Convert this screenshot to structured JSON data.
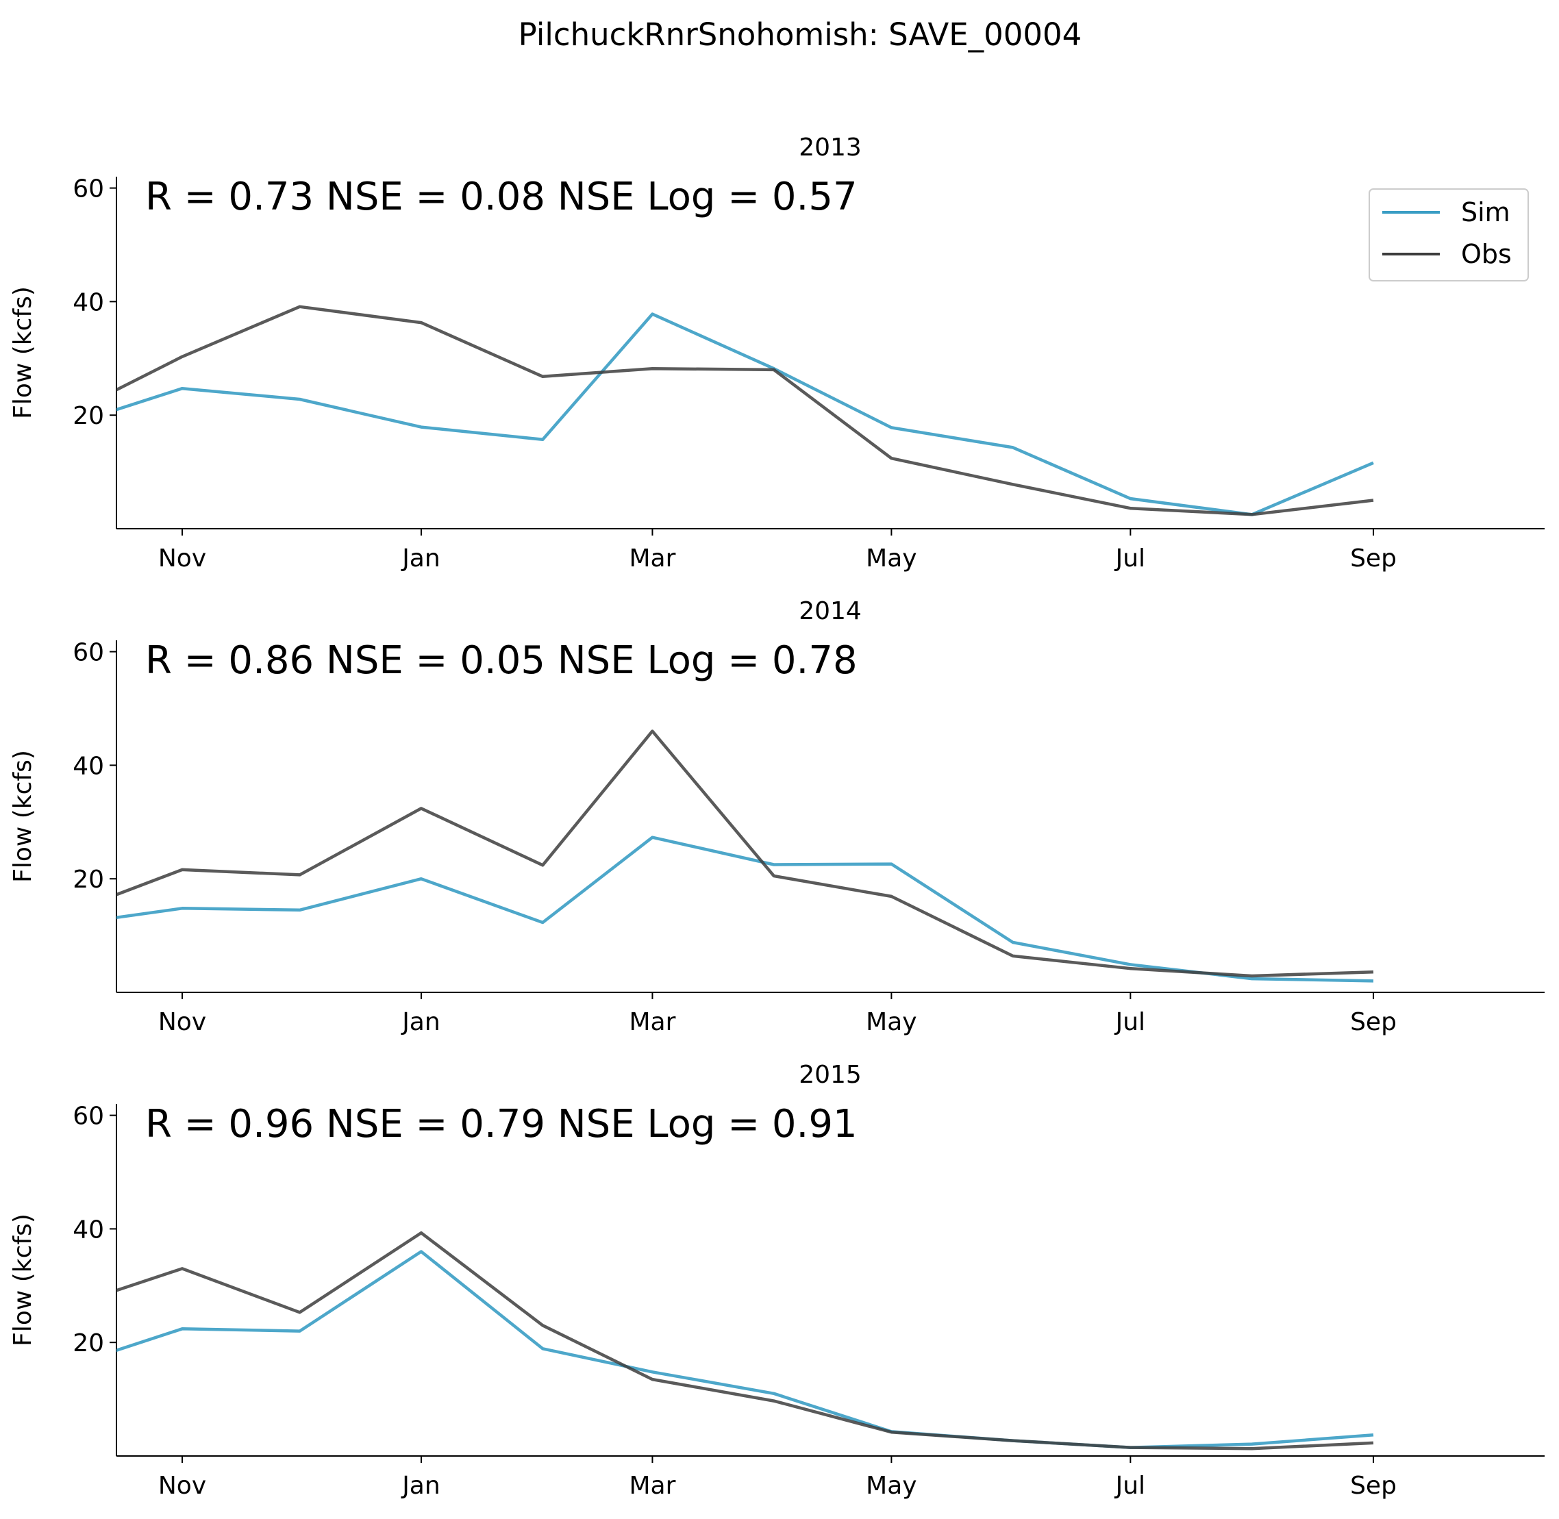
{
  "title": "PilchuckRnrSnohomish: SAVE_00004",
  "colors": {
    "sim": "#3a9dc4",
    "obs": "#3d3d3d"
  },
  "legend": {
    "position": "top-right",
    "sim_label": "Sim",
    "obs_label": "Obs"
  },
  "chart_data": [
    {
      "type": "line",
      "title": "2013",
      "stats": "R = 0.73  NSE = 0.08  NSE Log = 0.57",
      "ylabel": "Flow (kcfs)",
      "ylim": [
        0,
        62
      ],
      "yticks": [
        "20",
        "40",
        "60"
      ],
      "xticks": [
        "Nov",
        "Jan",
        "Mar",
        "May",
        "Jul",
        "Sep"
      ],
      "x": [
        "2012-10-01",
        "2012-11-01",
        "2012-12-01",
        "2013-01-01",
        "2013-02-01",
        "2013-03-01",
        "2013-04-01",
        "2013-05-01",
        "2013-06-01",
        "2013-07-01",
        "2013-08-01",
        "2013-09-01"
      ],
      "series": [
        {
          "name": "Sim",
          "values": [
            17.8,
            24.7,
            22.8,
            17.9,
            15.7,
            37.8,
            28.2,
            17.8,
            14.3,
            5.3,
            2.5,
            11.6
          ]
        },
        {
          "name": "Obs",
          "values": [
            19.5,
            30.3,
            39.1,
            36.3,
            26.8,
            28.2,
            28.0,
            12.4,
            7.8,
            3.6,
            2.5,
            5.0
          ]
        }
      ]
    },
    {
      "type": "line",
      "title": "2014",
      "stats": "R = 0.86  NSE = 0.05  NSE Log = 0.78",
      "ylabel": "Flow (kcfs)",
      "ylim": [
        0,
        62
      ],
      "yticks": [
        "20",
        "40",
        "60"
      ],
      "xticks": [
        "Nov",
        "Jan",
        "Mar",
        "May",
        "Jul",
        "Sep"
      ],
      "x": [
        "2013-10-01",
        "2013-11-01",
        "2013-12-01",
        "2014-01-01",
        "2014-02-01",
        "2014-03-01",
        "2014-04-01",
        "2014-05-01",
        "2014-06-01",
        "2014-07-01",
        "2014-08-01",
        "2014-09-01"
      ],
      "series": [
        {
          "name": "Sim",
          "values": [
            11.8,
            14.8,
            14.5,
            20.0,
            12.3,
            27.3,
            22.5,
            22.6,
            8.8,
            4.9,
            2.4,
            2.0
          ]
        },
        {
          "name": "Obs",
          "values": [
            13.5,
            21.6,
            20.7,
            32.4,
            22.4,
            46.0,
            20.5,
            16.9,
            6.4,
            4.2,
            2.9,
            3.6
          ]
        }
      ]
    },
    {
      "type": "line",
      "title": "2015",
      "stats": "R = 0.96  NSE = 0.79  NSE Log = 0.91",
      "ylabel": "Flow (kcfs)",
      "ylim": [
        0,
        62
      ],
      "yticks": [
        "20",
        "40",
        "60"
      ],
      "xticks": [
        "Nov",
        "Jan",
        "Mar",
        "May",
        "Jul",
        "Sep"
      ],
      "x": [
        "2014-10-01",
        "2014-11-01",
        "2014-12-01",
        "2015-01-01",
        "2015-02-01",
        "2015-03-01",
        "2015-04-01",
        "2015-05-01",
        "2015-06-01",
        "2015-07-01",
        "2015-08-01",
        "2015-09-01"
      ],
      "series": [
        {
          "name": "Sim",
          "values": [
            15.4,
            22.4,
            22.0,
            36.0,
            18.9,
            14.8,
            11.0,
            4.3,
            2.7,
            1.5,
            2.1,
            3.7
          ]
        },
        {
          "name": "Obs",
          "values": [
            25.9,
            33.0,
            25.3,
            39.3,
            23.0,
            13.5,
            9.7,
            4.2,
            2.7,
            1.5,
            1.3,
            2.3
          ]
        }
      ]
    }
  ]
}
